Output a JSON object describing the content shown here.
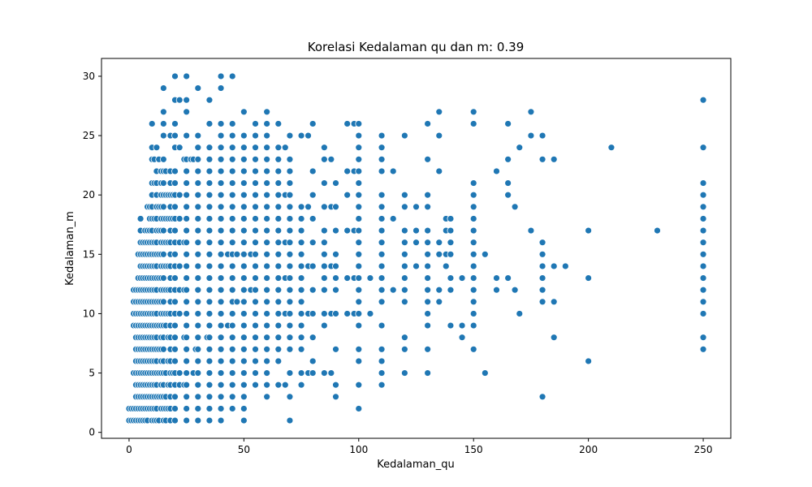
{
  "chart_data": {
    "type": "scatter",
    "title": "Korelasi Kedalaman qu dan m: 0.39",
    "xlabel": "Kedalaman_qu",
    "ylabel": "Kedalaman_m",
    "xlim": [
      -12,
      262
    ],
    "ylim": [
      -0.5,
      31.5
    ],
    "xticks": [
      0,
      50,
      100,
      150,
      200,
      250
    ],
    "yticks": [
      0,
      5,
      10,
      15,
      20,
      25,
      30
    ],
    "color": "#1f77b4",
    "grid": false,
    "columns": [
      {
        "x": 0,
        "y": [
          1,
          2
        ]
      },
      {
        "x": 1,
        "y": [
          1,
          2
        ]
      },
      {
        "x": 2,
        "y": [
          1,
          2,
          5,
          9,
          10,
          11,
          12
        ]
      },
      {
        "x": 3,
        "y": [
          1,
          2,
          3,
          4,
          5,
          6,
          7,
          8,
          9,
          10,
          11,
          12
        ]
      },
      {
        "x": 4,
        "y": [
          1,
          2,
          3,
          4,
          5,
          6,
          7,
          8,
          9,
          10,
          11,
          12,
          13,
          15
        ]
      },
      {
        "x": 5,
        "y": [
          1,
          2,
          3,
          4,
          5,
          6,
          7,
          8,
          9,
          10,
          11,
          12,
          13,
          14,
          15,
          16,
          17,
          18
        ]
      },
      {
        "x": 6,
        "y": [
          1,
          2,
          3,
          4,
          5,
          6,
          7,
          8,
          9,
          10,
          11,
          12,
          13,
          14,
          15,
          16
        ]
      },
      {
        "x": 7,
        "y": [
          1,
          2,
          3,
          4,
          5,
          6,
          7,
          8,
          9,
          10,
          11,
          12,
          13,
          14,
          15,
          16,
          17
        ]
      },
      {
        "x": 8,
        "y": [
          1,
          2,
          3,
          4,
          5,
          6,
          7,
          8,
          9,
          10,
          11,
          12,
          13,
          14,
          15,
          16,
          17,
          19
        ]
      },
      {
        "x": 9,
        "y": [
          2,
          3,
          4,
          5,
          6,
          7,
          8,
          9,
          10,
          11,
          12,
          13,
          14,
          15,
          16,
          17,
          18,
          19
        ]
      },
      {
        "x": 10,
        "y": [
          1,
          2,
          3,
          4,
          5,
          6,
          7,
          8,
          9,
          10,
          11,
          12,
          13,
          14,
          15,
          16,
          17,
          18,
          19,
          20,
          21,
          23,
          24,
          26
        ]
      },
      {
        "x": 11,
        "y": [
          1,
          2,
          3,
          4,
          5,
          6,
          7,
          8,
          9,
          10,
          11,
          12,
          13,
          14,
          15,
          16,
          18,
          21,
          23
        ]
      },
      {
        "x": 12,
        "y": [
          1,
          2,
          3,
          4,
          5,
          6,
          7,
          8,
          9,
          10,
          11,
          12,
          13,
          14,
          15,
          16,
          17,
          18,
          19,
          20,
          21,
          22,
          24
        ]
      },
      {
        "x": 13,
        "y": [
          1,
          3,
          5,
          7,
          9,
          11,
          13,
          15,
          17,
          19,
          23
        ]
      },
      {
        "x": 14,
        "y": [
          2,
          3,
          4,
          5,
          6,
          7,
          8,
          9,
          10,
          11,
          12,
          13,
          14,
          15,
          16,
          17,
          18,
          19,
          20,
          21,
          22
        ]
      },
      {
        "x": 15,
        "y": [
          1,
          2,
          3,
          4,
          5,
          6,
          7,
          8,
          9,
          10,
          11,
          12,
          13,
          14,
          15,
          16,
          17,
          18,
          19,
          20,
          21,
          22,
          23,
          25,
          26,
          27,
          29
        ]
      },
      {
        "x": 16,
        "y": [
          1,
          2,
          3,
          5,
          9,
          10,
          12,
          14,
          16,
          18,
          20,
          22
        ]
      },
      {
        "x": 17,
        "y": [
          2,
          4,
          6,
          8,
          10,
          12,
          14,
          16,
          18,
          20
        ]
      },
      {
        "x": 18,
        "y": [
          1,
          2,
          3,
          4,
          5,
          6,
          7,
          8,
          9,
          10,
          11,
          12,
          13,
          14,
          15,
          16,
          17,
          18,
          19,
          20,
          21,
          22,
          25
        ]
      },
      {
        "x": 19,
        "y": [
          5,
          18,
          20
        ]
      },
      {
        "x": 20,
        "y": [
          1,
          2,
          3,
          4,
          5,
          6,
          7,
          8,
          9,
          10,
          11,
          12,
          13,
          14,
          15,
          16,
          17,
          18,
          19,
          20,
          21,
          22,
          24,
          25,
          26,
          28,
          30
        ]
      },
      {
        "x": 22,
        "y": [
          4,
          5,
          10,
          12,
          14,
          16,
          18,
          20,
          24,
          28
        ]
      },
      {
        "x": 24,
        "y": [
          4,
          8,
          12,
          16,
          23
        ]
      },
      {
        "x": 25,
        "y": [
          1,
          2,
          3,
          4,
          5,
          6,
          7,
          8,
          9,
          10,
          11,
          12,
          13,
          14,
          15,
          16,
          17,
          18,
          19,
          20,
          21,
          22,
          23,
          25,
          27,
          28,
          30
        ]
      },
      {
        "x": 27,
        "y": [
          23
        ]
      },
      {
        "x": 28,
        "y": [
          5,
          23
        ]
      },
      {
        "x": 29,
        "y": [
          7
        ]
      },
      {
        "x": 30,
        "y": [
          1,
          2,
          3,
          4,
          5,
          6,
          7,
          8,
          9,
          10,
          11,
          12,
          13,
          14,
          15,
          16,
          17,
          18,
          19,
          20,
          21,
          22,
          23,
          24,
          25,
          29
        ]
      },
      {
        "x": 34,
        "y": [
          8
        ]
      },
      {
        "x": 35,
        "y": [
          1,
          2,
          3,
          4,
          5,
          6,
          7,
          8,
          9,
          10,
          11,
          12,
          13,
          14,
          15,
          16,
          17,
          18,
          19,
          20,
          21,
          22,
          23,
          24,
          26,
          28
        ]
      },
      {
        "x": 40,
        "y": [
          1,
          2,
          3,
          4,
          5,
          6,
          7,
          8,
          9,
          10,
          11,
          12,
          13,
          14,
          15,
          16,
          17,
          18,
          19,
          20,
          21,
          22,
          23,
          24,
          25,
          26,
          29,
          30
        ]
      },
      {
        "x": 43,
        "y": [
          9,
          15
        ]
      },
      {
        "x": 45,
        "y": [
          2,
          3,
          4,
          5,
          6,
          7,
          8,
          9,
          10,
          11,
          12,
          13,
          14,
          15,
          16,
          17,
          18,
          19,
          20,
          21,
          22,
          23,
          24,
          25,
          26,
          30
        ]
      },
      {
        "x": 47,
        "y": [
          11,
          15
        ]
      },
      {
        "x": 50,
        "y": [
          1,
          2,
          3,
          4,
          5,
          6,
          7,
          8,
          9,
          10,
          11,
          12,
          13,
          14,
          15,
          16,
          17,
          18,
          19,
          20,
          21,
          22,
          23,
          24,
          25,
          27
        ]
      },
      {
        "x": 53,
        "y": [
          12,
          15
        ]
      },
      {
        "x": 55,
        "y": [
          4,
          5,
          6,
          7,
          8,
          9,
          10,
          11,
          12,
          13,
          14,
          15,
          16,
          17,
          18,
          19,
          20,
          21,
          22,
          23,
          24,
          25,
          26
        ]
      },
      {
        "x": 60,
        "y": [
          3,
          4,
          5,
          6,
          7,
          8,
          9,
          10,
          11,
          12,
          13,
          14,
          15,
          16,
          17,
          18,
          19,
          20,
          21,
          22,
          23,
          24,
          25,
          26,
          27
        ]
      },
      {
        "x": 65,
        "y": [
          4,
          6,
          7,
          8,
          9,
          10,
          11,
          12,
          13,
          14,
          15,
          16,
          17,
          18,
          19,
          20,
          21,
          22,
          23,
          24,
          26
        ]
      },
      {
        "x": 68,
        "y": [
          4,
          10,
          13,
          16,
          20,
          24
        ]
      },
      {
        "x": 70,
        "y": [
          1,
          3,
          5,
          7,
          8,
          9,
          10,
          11,
          12,
          13,
          14,
          15,
          16,
          17,
          18,
          19,
          20,
          21,
          22,
          23,
          25
        ]
      },
      {
        "x": 75,
        "y": [
          4,
          5,
          7,
          8,
          9,
          10,
          11,
          12,
          13,
          14,
          15,
          16,
          17,
          18,
          19,
          25
        ]
      },
      {
        "x": 78,
        "y": [
          5,
          10,
          14,
          19,
          25
        ]
      },
      {
        "x": 80,
        "y": [
          5,
          6,
          8,
          10,
          12,
          14,
          16,
          18,
          20,
          22,
          26
        ]
      },
      {
        "x": 85,
        "y": [
          5,
          9,
          10,
          12,
          13,
          14,
          15,
          16,
          17,
          19,
          21,
          23,
          24
        ]
      },
      {
        "x": 88,
        "y": [
          5,
          10,
          14,
          19,
          23
        ]
      },
      {
        "x": 90,
        "y": [
          3,
          4,
          7,
          10,
          12,
          13,
          14,
          15,
          17,
          19,
          21
        ]
      },
      {
        "x": 95,
        "y": [
          10,
          13,
          17,
          20,
          22,
          26
        ]
      },
      {
        "x": 98,
        "y": [
          10,
          13,
          17,
          22,
          26
        ]
      },
      {
        "x": 100,
        "y": [
          2,
          4,
          6,
          7,
          9,
          10,
          11,
          12,
          13,
          14,
          15,
          16,
          17,
          18,
          19,
          20,
          21,
          22,
          23,
          24,
          25,
          26
        ]
      },
      {
        "x": 105,
        "y": [
          10,
          13
        ]
      },
      {
        "x": 110,
        "y": [
          4,
          5,
          6,
          7,
          9,
          11,
          12,
          13,
          14,
          15,
          16,
          17,
          18,
          19,
          20,
          22,
          23,
          24,
          25
        ]
      },
      {
        "x": 115,
        "y": [
          12,
          18,
          22
        ]
      },
      {
        "x": 120,
        "y": [
          5,
          7,
          8,
          11,
          12,
          13,
          14,
          15,
          16,
          17,
          19,
          20,
          25
        ]
      },
      {
        "x": 125,
        "y": [
          14,
          16,
          17,
          19
        ]
      },
      {
        "x": 130,
        "y": [
          5,
          7,
          9,
          10,
          11,
          12,
          13,
          14,
          15,
          16,
          17,
          19,
          20,
          23,
          26
        ]
      },
      {
        "x": 135,
        "y": [
          11,
          12,
          15,
          16,
          22,
          25,
          27
        ]
      },
      {
        "x": 138,
        "y": [
          14,
          15,
          17,
          18
        ]
      },
      {
        "x": 140,
        "y": [
          9,
          12,
          13,
          15,
          16,
          17,
          18
        ]
      },
      {
        "x": 145,
        "y": [
          8,
          9,
          13
        ]
      },
      {
        "x": 150,
        "y": [
          7,
          9,
          10,
          11,
          12,
          13,
          14,
          15,
          16,
          17,
          18,
          19,
          20,
          21,
          26,
          27
        ]
      },
      {
        "x": 155,
        "y": [
          5,
          15
        ]
      },
      {
        "x": 160,
        "y": [
          12,
          13,
          22
        ]
      },
      {
        "x": 165,
        "y": [
          13,
          20,
          21,
          23,
          26
        ]
      },
      {
        "x": 168,
        "y": [
          12,
          19
        ]
      },
      {
        "x": 170,
        "y": [
          10,
          24
        ]
      },
      {
        "x": 175,
        "y": [
          17,
          25,
          27
        ]
      },
      {
        "x": 180,
        "y": [
          3,
          11,
          12,
          13,
          14,
          15,
          16,
          23,
          25
        ]
      },
      {
        "x": 185,
        "y": [
          8,
          11,
          14,
          23
        ]
      },
      {
        "x": 190,
        "y": [
          14
        ]
      },
      {
        "x": 200,
        "y": [
          6,
          13,
          17
        ]
      },
      {
        "x": 210,
        "y": [
          24
        ]
      },
      {
        "x": 230,
        "y": [
          17
        ]
      },
      {
        "x": 250,
        "y": [
          7,
          8,
          10,
          11,
          12,
          13,
          14,
          15,
          16,
          17,
          18,
          19,
          20,
          21,
          24,
          28
        ]
      }
    ]
  }
}
